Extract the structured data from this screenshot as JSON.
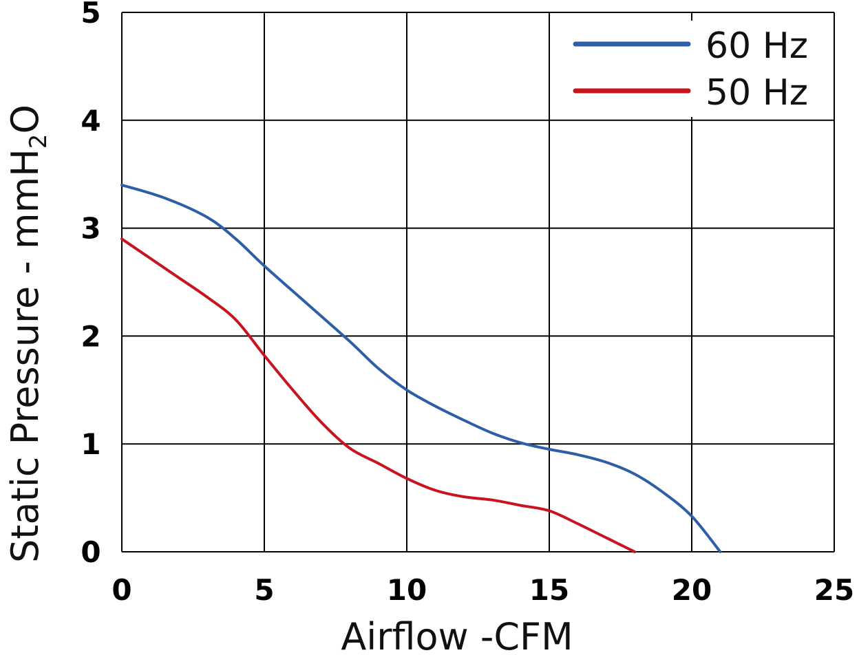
{
  "chart_data": {
    "type": "line",
    "xlabel": "Airflow -CFM",
    "ylabel": {
      "prefix": "Static Pressure - mmH",
      "subscript": "2",
      "suffix": "O"
    },
    "xlim": [
      0,
      25
    ],
    "ylim": [
      0,
      5
    ],
    "x_ticks": [
      "0",
      "5",
      "10",
      "15",
      "20",
      "25"
    ],
    "y_ticks": [
      "0",
      "1",
      "2",
      "3",
      "4",
      "5"
    ],
    "grid": true,
    "legend_position": "top-right",
    "series": [
      {
        "name": "60 Hz",
        "color": "#2e5ea8",
        "points": [
          [
            0,
            3.4
          ],
          [
            1.5,
            3.28
          ],
          [
            3,
            3.1
          ],
          [
            4,
            2.9
          ],
          [
            5,
            2.65
          ],
          [
            6.5,
            2.3
          ],
          [
            8,
            1.95
          ],
          [
            9,
            1.7
          ],
          [
            10,
            1.5
          ],
          [
            11,
            1.35
          ],
          [
            12,
            1.22
          ],
          [
            13,
            1.1
          ],
          [
            14,
            1.01
          ],
          [
            15,
            0.95
          ],
          [
            16,
            0.9
          ],
          [
            17,
            0.83
          ],
          [
            18,
            0.72
          ],
          [
            19,
            0.55
          ],
          [
            20,
            0.33
          ],
          [
            21,
            0.0
          ]
        ]
      },
      {
        "name": "50 Hz",
        "color": "#c8141e",
        "points": [
          [
            0,
            2.9
          ],
          [
            1,
            2.72
          ],
          [
            2,
            2.54
          ],
          [
            3,
            2.36
          ],
          [
            4,
            2.15
          ],
          [
            5,
            1.82
          ],
          [
            6,
            1.5
          ],
          [
            7,
            1.2
          ],
          [
            8,
            0.96
          ],
          [
            9,
            0.82
          ],
          [
            10,
            0.68
          ],
          [
            11,
            0.57
          ],
          [
            12,
            0.51
          ],
          [
            13,
            0.48
          ],
          [
            14,
            0.43
          ],
          [
            15,
            0.38
          ],
          [
            16,
            0.26
          ],
          [
            17,
            0.13
          ],
          [
            18,
            0.0
          ]
        ]
      }
    ]
  }
}
